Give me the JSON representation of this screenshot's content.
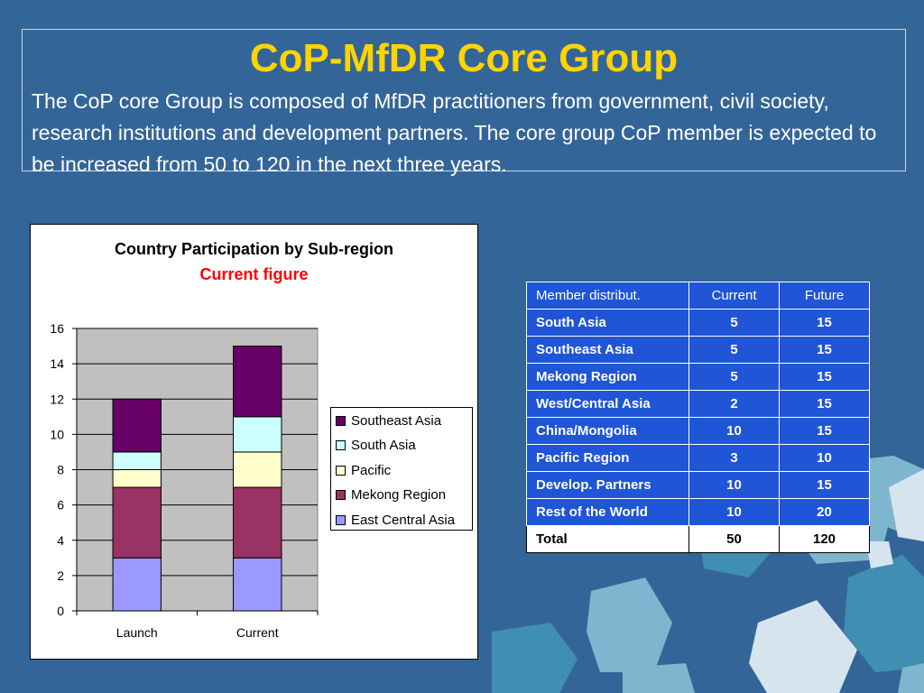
{
  "slide": {
    "title": "CoP-MfDR Core Group",
    "description": "The CoP core Group is composed of MfDR practitioners from government, civil society, research institutions and development partners. The core group CoP member is expected to be increased from 50 to 120 in the next three years."
  },
  "chart_data": {
    "type": "bar",
    "stacked": true,
    "title": "Country Participation by Sub-region",
    "subtitle": "Current figure",
    "categories": [
      "Launch",
      "Current"
    ],
    "ylim": [
      0,
      16
    ],
    "yticks": [
      "0",
      "2",
      "4",
      "6",
      "8",
      "10",
      "12",
      "14",
      "16"
    ],
    "grid": true,
    "legend_position": "right",
    "series": [
      {
        "name": "East Central Asia",
        "values": [
          3,
          3
        ],
        "color": "#9999ff"
      },
      {
        "name": "Mekong Region",
        "values": [
          4,
          4
        ],
        "color": "#993366"
      },
      {
        "name": "Pacific",
        "values": [
          1,
          2
        ],
        "color": "#ffffcc"
      },
      {
        "name": "South Asia",
        "values": [
          1,
          2
        ],
        "color": "#ccffff"
      },
      {
        "name": "Southeast Asia",
        "values": [
          3,
          4
        ],
        "color": "#660066"
      }
    ],
    "legend_order": [
      "Southeast Asia",
      "South Asia",
      "Pacific",
      "Mekong Region",
      "East Central Asia"
    ]
  },
  "table": {
    "header": [
      "Member distribut.",
      "Current",
      "Future"
    ],
    "rows": [
      [
        "South Asia",
        "5",
        "15"
      ],
      [
        "Southeast Asia",
        "5",
        "15"
      ],
      [
        "Mekong Region",
        "5",
        "15"
      ],
      [
        "West/Central Asia",
        "2",
        "15"
      ],
      [
        "China/Mongolia",
        "10",
        "15"
      ],
      [
        "Pacific Region",
        "3",
        "10"
      ],
      [
        "Develop. Partners",
        "10",
        "15"
      ],
      [
        "Rest of the World",
        "10",
        "20"
      ]
    ],
    "total": [
      "Total",
      "50",
      "120"
    ]
  },
  "colors": {
    "background": "#346598",
    "title": "#ffd400",
    "table_fill": "#1f55d6",
    "plot_area": "#c0c0c0",
    "puzzle_light": "#d6e4ee",
    "puzzle_mid": "#7fb6cf",
    "puzzle_dark": "#3f8fb3"
  }
}
